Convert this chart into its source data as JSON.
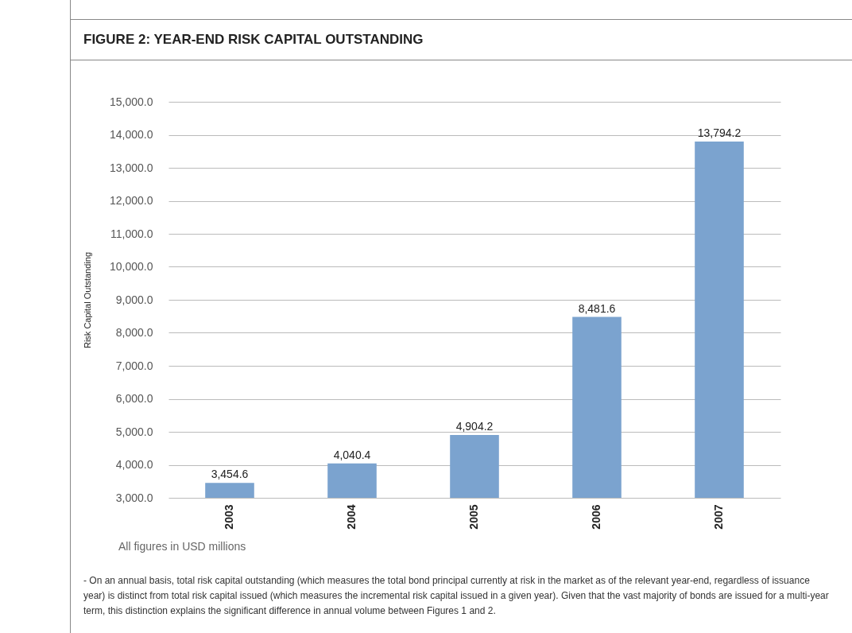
{
  "chart_data": {
    "type": "bar",
    "title": "FIGURE 2: YEAR-END RISK CAPITAL OUTSTANDING",
    "ylabel": "Risk Capital Outstanding",
    "categories": [
      "2003",
      "2004",
      "2005",
      "2006",
      "2007"
    ],
    "values": [
      3454.6,
      4040.4,
      4904.2,
      8481.6,
      13794.2
    ],
    "value_labels": [
      "3,454.6",
      "4,040.4",
      "4,904.2",
      "8,481.6",
      "13,794.2"
    ],
    "color": "#7ba3cf",
    "ylim": [
      3000,
      15000
    ],
    "yticks": [
      {
        "value": 3000,
        "label": "3,000.0"
      },
      {
        "value": 4000,
        "label": "4,000.0"
      },
      {
        "value": 5000,
        "label": "5,000.0"
      },
      {
        "value": 6000,
        "label": "6,000.0"
      },
      {
        "value": 7000,
        "label": "7,000.0"
      },
      {
        "value": 8000,
        "label": "8,000.0"
      },
      {
        "value": 9000,
        "label": "9,000.0"
      },
      {
        "value": 10000,
        "label": "10,000.0"
      },
      {
        "value": 11000,
        "label": "11,000.0"
      },
      {
        "value": 12000,
        "label": "12,000.0"
      },
      {
        "value": 13000,
        "label": "13,000.0"
      },
      {
        "value": 14000,
        "label": "14,000.0"
      },
      {
        "value": 15000,
        "label": "15,000.0"
      }
    ],
    "grid": "y",
    "annotations": [
      "All figures in USD millions",
      "- On an annual basis, total risk capital outstanding (which measures the total bond principal currently at risk in the market as of the relevant year-end, regardless of issuance year) is distinct from total risk capital issued (which measures the incremental risk capital issued in a given year). Given that the vast majority of bonds are issued for a multi-year term, this distinction explains the significant difference in annual volume between Figures 1 and 2."
    ]
  }
}
